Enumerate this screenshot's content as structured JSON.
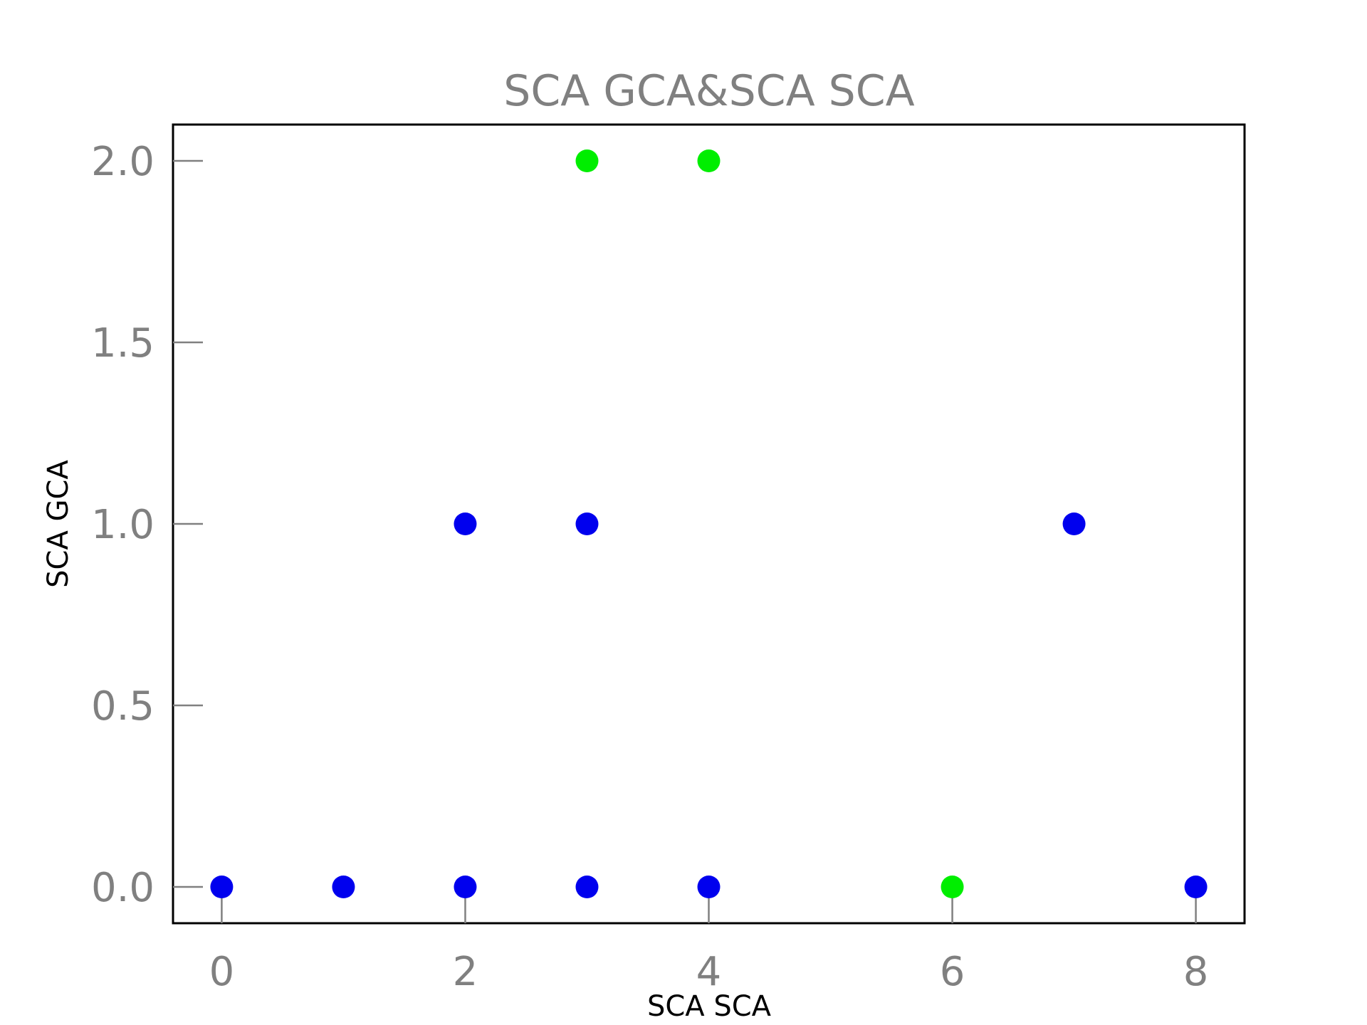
{
  "chart_data": {
    "type": "scatter",
    "title": "SCA GCA&SCA SCA",
    "xlabel": "SCA SCA",
    "ylabel": "SCA GCA",
    "xlim": [
      -0.4,
      8.4
    ],
    "ylim": [
      -0.1,
      2.1
    ],
    "xticks": [
      0,
      2,
      4,
      6,
      8
    ],
    "yticks": [
      0.0,
      0.5,
      1.0,
      1.5,
      2.0
    ],
    "xtick_labels": [
      "0",
      "2",
      "4",
      "6",
      "8"
    ],
    "ytick_labels": [
      "0.0",
      "0.5",
      "1.0",
      "1.5",
      "2.0"
    ],
    "grid": false,
    "legend": "none",
    "points": [
      {
        "x": 0,
        "y": 0,
        "color": "#0000ee"
      },
      {
        "x": 1,
        "y": 0,
        "color": "#0000ee"
      },
      {
        "x": 2,
        "y": 0,
        "color": "#0000ee"
      },
      {
        "x": 2,
        "y": 1,
        "color": "#0000ee"
      },
      {
        "x": 3,
        "y": 0,
        "color": "#0000ee"
      },
      {
        "x": 3,
        "y": 1,
        "color": "#0000ee"
      },
      {
        "x": 3,
        "y": 2,
        "color": "#00ee00"
      },
      {
        "x": 4,
        "y": 0,
        "color": "#0000ee"
      },
      {
        "x": 4,
        "y": 2,
        "color": "#00ee00"
      },
      {
        "x": 6,
        "y": 0,
        "color": "#00ee00"
      },
      {
        "x": 7,
        "y": 1,
        "color": "#0000ee"
      },
      {
        "x": 8,
        "y": 0,
        "color": "#0000ee"
      }
    ]
  }
}
